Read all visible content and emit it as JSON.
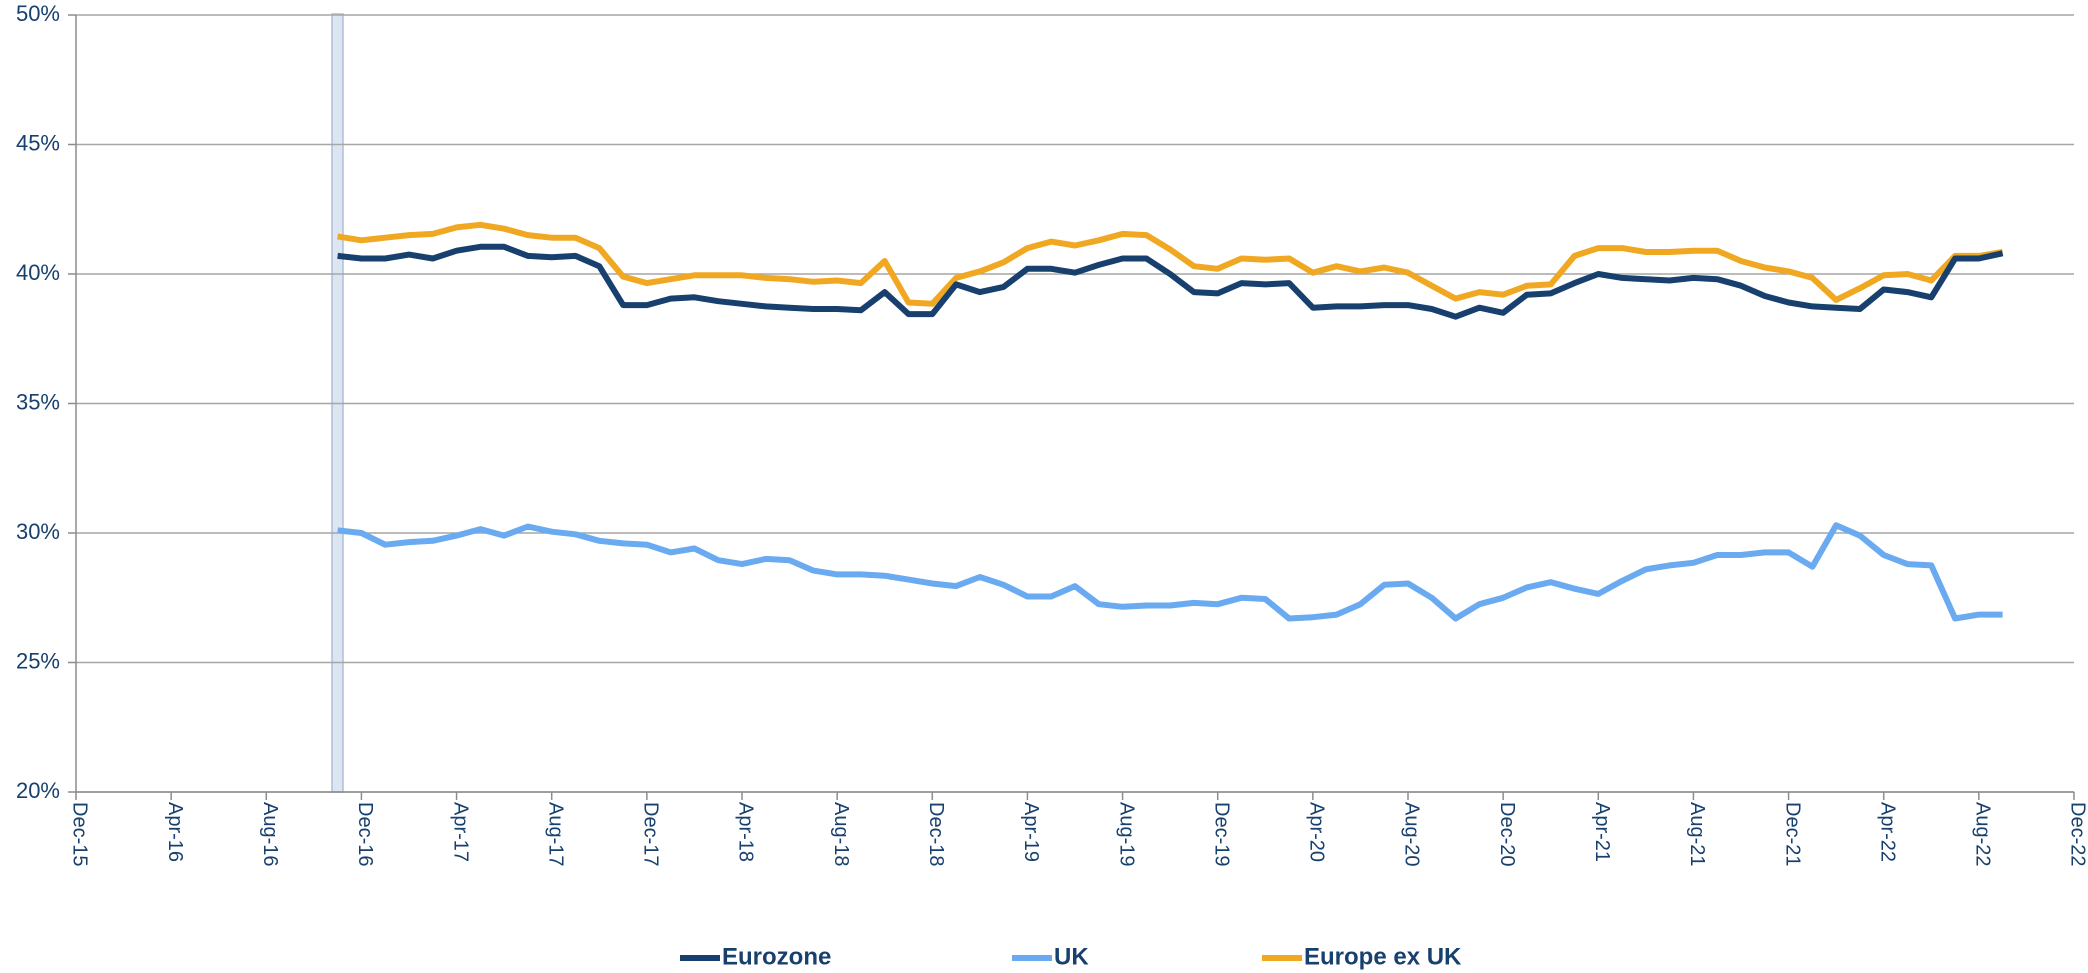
{
  "chart_data": {
    "type": "line",
    "x": [
      "2016-11",
      "2016-12",
      "2017-01",
      "2017-02",
      "2017-03",
      "2017-04",
      "2017-05",
      "2017-06",
      "2017-07",
      "2017-08",
      "2017-09",
      "2017-10",
      "2017-11",
      "2017-12",
      "2018-01",
      "2018-02",
      "2018-03",
      "2018-04",
      "2018-05",
      "2018-06",
      "2018-07",
      "2018-08",
      "2018-09",
      "2018-10",
      "2018-11",
      "2018-12",
      "2019-01",
      "2019-02",
      "2019-03",
      "2019-04",
      "2019-05",
      "2019-06",
      "2019-07",
      "2019-08",
      "2019-09",
      "2019-10",
      "2019-11",
      "2019-12",
      "2020-01",
      "2020-02",
      "2020-03",
      "2020-04",
      "2020-05",
      "2020-06",
      "2020-07",
      "2020-08",
      "2020-09",
      "2020-10",
      "2020-11",
      "2020-12",
      "2021-01",
      "2021-02",
      "2021-03",
      "2021-04",
      "2021-05",
      "2021-06",
      "2021-07",
      "2021-08",
      "2021-09",
      "2021-10",
      "2021-11",
      "2021-12",
      "2022-01",
      "2022-02",
      "2022-03",
      "2022-04",
      "2022-05",
      "2022-06",
      "2022-07",
      "2022-08",
      "2022-09"
    ],
    "series": [
      {
        "name": "Eurozone",
        "color": "#17406e",
        "values": [
          40.7,
          40.6,
          40.6,
          40.75,
          40.6,
          40.9,
          41.05,
          41.05,
          40.7,
          40.65,
          40.7,
          40.3,
          38.8,
          38.8,
          39.05,
          39.1,
          38.95,
          38.85,
          38.75,
          38.7,
          38.65,
          38.65,
          38.6,
          39.3,
          38.45,
          38.45,
          39.6,
          39.3,
          39.5,
          40.2,
          40.2,
          40.05,
          40.35,
          40.6,
          40.6,
          40.0,
          39.3,
          39.25,
          39.65,
          39.6,
          39.65,
          38.7,
          38.75,
          38.75,
          38.8,
          38.8,
          38.65,
          38.35,
          38.7,
          38.5,
          39.2,
          39.25,
          39.65,
          40.0,
          39.85,
          39.8,
          39.75,
          39.85,
          39.8,
          39.55,
          39.15,
          38.9,
          38.75,
          38.7,
          38.65,
          39.4,
          39.3,
          39.1,
          40.6,
          40.6,
          40.8
        ]
      },
      {
        "name": "UK",
        "color": "#6aaaf0",
        "values": [
          30.1,
          30.0,
          29.55,
          29.65,
          29.7,
          29.9,
          30.15,
          29.9,
          30.25,
          30.05,
          29.95,
          29.7,
          29.6,
          29.55,
          29.25,
          29.4,
          28.95,
          28.8,
          29.0,
          28.95,
          28.55,
          28.4,
          28.4,
          28.35,
          28.2,
          28.05,
          27.95,
          28.3,
          28.0,
          27.55,
          27.55,
          27.95,
          27.25,
          27.15,
          27.2,
          27.2,
          27.3,
          27.25,
          27.5,
          27.45,
          26.7,
          26.75,
          26.85,
          27.25,
          28.0,
          28.05,
          27.5,
          26.7,
          27.25,
          27.5,
          27.9,
          28.1,
          27.85,
          27.65,
          28.15,
          28.6,
          28.75,
          28.85,
          29.15,
          29.15,
          29.25,
          29.25,
          28.7,
          30.3,
          29.9,
          29.15,
          28.8,
          28.75,
          26.7,
          26.85,
          26.85
        ]
      },
      {
        "name": "Europe ex UK",
        "color": "#f0a822",
        "values": [
          41.45,
          41.3,
          41.4,
          41.5,
          41.55,
          41.8,
          41.9,
          41.75,
          41.5,
          41.4,
          41.4,
          41.0,
          39.9,
          39.65,
          39.8,
          39.95,
          39.95,
          39.95,
          39.85,
          39.8,
          39.7,
          39.75,
          39.65,
          40.5,
          38.9,
          38.85,
          39.85,
          40.1,
          40.45,
          41.0,
          41.25,
          41.1,
          41.3,
          41.55,
          41.5,
          40.95,
          40.3,
          40.2,
          40.6,
          40.55,
          40.6,
          40.05,
          40.3,
          40.1,
          40.25,
          40.05,
          39.55,
          39.05,
          39.3,
          39.2,
          39.55,
          39.6,
          40.7,
          41.0,
          41.0,
          40.85,
          40.85,
          40.9,
          40.9,
          40.5,
          40.25,
          40.1,
          39.85,
          39.0,
          39.45,
          39.95,
          40.0,
          39.75,
          40.7,
          40.7,
          40.85
        ]
      }
    ],
    "xlim": [
      "2015-12",
      "2022-12"
    ],
    "xticks": [
      {
        "value": "2015-12",
        "label": "Dec-15"
      },
      {
        "value": "2016-04",
        "label": "Apr-16"
      },
      {
        "value": "2016-08",
        "label": "Aug-16"
      },
      {
        "value": "2016-12",
        "label": "Dec-16"
      },
      {
        "value": "2017-04",
        "label": "Apr-17"
      },
      {
        "value": "2017-08",
        "label": "Aug-17"
      },
      {
        "value": "2017-12",
        "label": "Dec-17"
      },
      {
        "value": "2018-04",
        "label": "Apr-18"
      },
      {
        "value": "2018-08",
        "label": "Aug-18"
      },
      {
        "value": "2018-12",
        "label": "Dec-18"
      },
      {
        "value": "2019-04",
        "label": "Apr-19"
      },
      {
        "value": "2019-08",
        "label": "Aug-19"
      },
      {
        "value": "2019-12",
        "label": "Dec-19"
      },
      {
        "value": "2020-04",
        "label": "Apr-20"
      },
      {
        "value": "2020-08",
        "label": "Aug-20"
      },
      {
        "value": "2020-12",
        "label": "Dec-20"
      },
      {
        "value": "2021-04",
        "label": "Apr-21"
      },
      {
        "value": "2021-08",
        "label": "Aug-21"
      },
      {
        "value": "2021-12",
        "label": "Dec-21"
      },
      {
        "value": "2022-04",
        "label": "Apr-22"
      },
      {
        "value": "2022-08",
        "label": "Aug-22"
      },
      {
        "value": "2022-12",
        "label": "Dec-22"
      }
    ],
    "ylim": [
      20,
      50
    ],
    "yticks": [
      {
        "value": 20,
        "label": "20%"
      },
      {
        "value": 25,
        "label": "25%"
      },
      {
        "value": 30,
        "label": "30%"
      },
      {
        "value": 35,
        "label": "35%"
      },
      {
        "value": 40,
        "label": "40%"
      },
      {
        "value": 45,
        "label": "45%"
      },
      {
        "value": 50,
        "label": "50%"
      }
    ],
    "grid": true,
    "legend": "bottom"
  }
}
